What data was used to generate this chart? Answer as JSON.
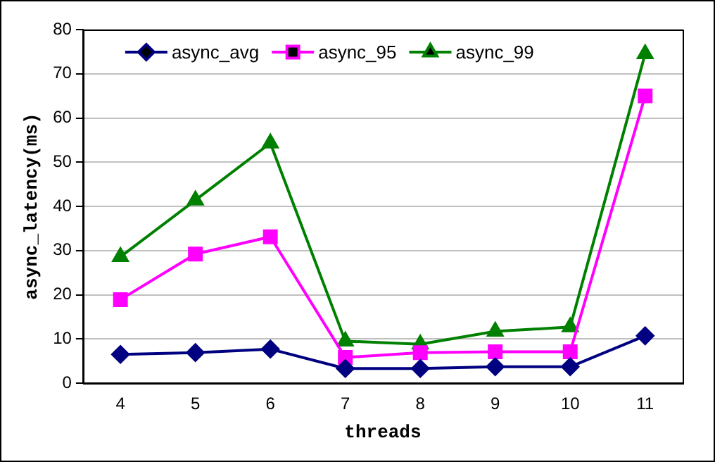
{
  "chart_data": {
    "type": "line",
    "xlabel": "threads",
    "ylabel": "async_latency(ms)",
    "categories": [
      "4",
      "5",
      "6",
      "7",
      "8",
      "9",
      "10",
      "11"
    ],
    "series": [
      {
        "name": "async_avg",
        "color": "#000080",
        "marker": "diamond",
        "values": [
          6.5,
          6.9,
          7.7,
          3.3,
          3.3,
          3.7,
          3.7,
          10.7
        ]
      },
      {
        "name": "async_95",
        "color": "#ff00ff",
        "marker": "square",
        "values": [
          18.9,
          29.2,
          33.1,
          5.8,
          6.9,
          7.1,
          7.1,
          65
        ]
      },
      {
        "name": "async_99",
        "color": "#008000",
        "marker": "triangle",
        "values": [
          28.6,
          41.4,
          54.3,
          9.5,
          8.8,
          11.7,
          12.7,
          74.5
        ]
      }
    ],
    "ylim": [
      0,
      80
    ],
    "yticks": [
      0,
      10,
      20,
      30,
      40,
      50,
      60,
      70,
      80
    ],
    "grid": "y",
    "legend": "top left"
  }
}
